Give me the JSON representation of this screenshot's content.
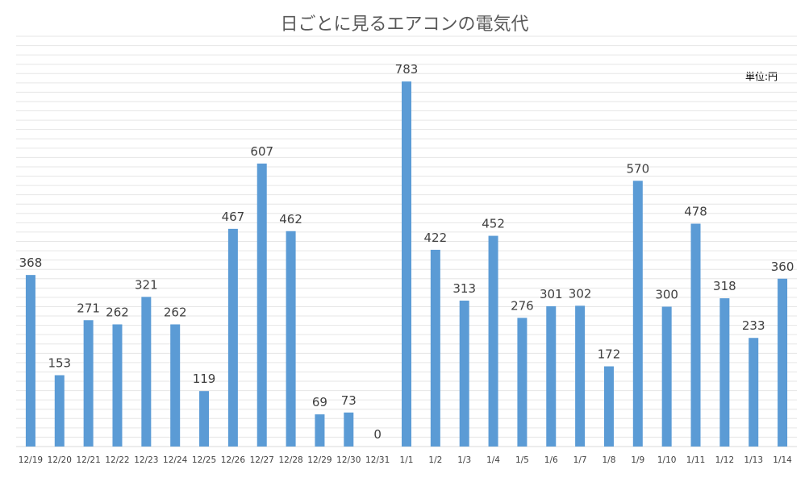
{
  "chart_data": {
    "type": "bar",
    "title": "日ごとに見るエアコンの電気代",
    "unit_note": "単位:円",
    "categories": [
      "12/19",
      "12/20",
      "12/21",
      "12/22",
      "12/23",
      "12/24",
      "12/25",
      "12/26",
      "12/27",
      "12/28",
      "12/29",
      "12/30",
      "12/31",
      "1/1",
      "1/2",
      "1/3",
      "1/4",
      "1/5",
      "1/6",
      "1/7",
      "1/8",
      "1/9",
      "1/10",
      "1/11",
      "1/12",
      "1/13",
      "1/14"
    ],
    "values": [
      368,
      153,
      271,
      262,
      321,
      262,
      119,
      467,
      607,
      462,
      69,
      73,
      0,
      783,
      422,
      313,
      452,
      276,
      301,
      302,
      172,
      570,
      300,
      478,
      318,
      233,
      360
    ],
    "xlabel": "",
    "ylabel": "",
    "ylim": [
      0,
      880
    ],
    "grid": true,
    "legend": "none",
    "bar_color": "#5b9bd5",
    "gridline_color": "#e6e6e6",
    "axis_color": "#d9d9d9"
  }
}
